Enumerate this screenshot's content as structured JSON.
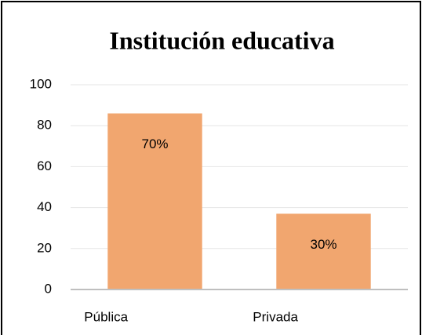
{
  "chart_data": {
    "type": "bar",
    "title": "Institución educativa",
    "categories": [
      "Pública",
      "Privada"
    ],
    "values": [
      86,
      37
    ],
    "annotations": [
      "70%",
      "30%"
    ],
    "color": "#f1a66f",
    "ylim": [
      0,
      100
    ],
    "yticks": [
      0,
      20,
      40,
      60,
      80,
      100
    ],
    "grid": true
  }
}
